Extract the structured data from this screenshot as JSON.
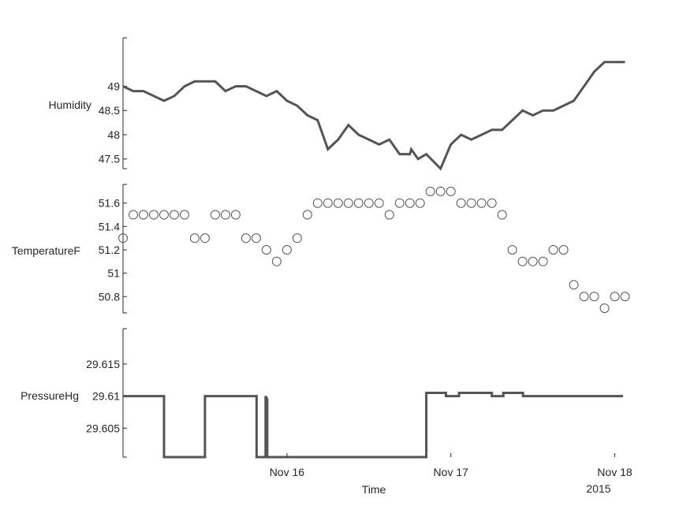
{
  "chart_data": {
    "type": "line",
    "layout": "stacked-plot",
    "x_axis": {
      "label": "Time",
      "ticks": [
        "Nov 16",
        "Nov 17",
        "Nov 18"
      ],
      "tick_days": [
        16,
        17,
        18
      ],
      "range_days": [
        15,
        18.05
      ],
      "secondary_label": "2015"
    },
    "panels": [
      {
        "ylabel": "Humidity",
        "style": "line",
        "color": "#555555",
        "ylim": [
          47.3,
          50
        ],
        "yticks": [
          "47.5",
          "48",
          "48.5",
          "49"
        ],
        "x": [
          15.0,
          15.0625,
          15.125,
          15.1875,
          15.25,
          15.3125,
          15.375,
          15.4375,
          15.5,
          15.5625,
          15.625,
          15.6875,
          15.75,
          15.8125,
          15.875,
          15.9375,
          16.0,
          16.0625,
          16.125,
          16.1875,
          16.25,
          16.3125,
          16.375,
          16.4375,
          16.5,
          16.5625,
          16.625,
          16.6875,
          16.75,
          16.7583,
          16.8,
          16.85,
          16.9375,
          17.0,
          17.0625,
          17.125,
          17.1875,
          17.25,
          17.3125,
          17.375,
          17.4375,
          17.5,
          17.5625,
          17.625,
          17.6875,
          17.75,
          17.8125,
          17.875,
          17.9375,
          18.0,
          18.0625
        ],
        "y": [
          49.0,
          48.9,
          48.9,
          48.8,
          48.7,
          48.8,
          49.0,
          49.1,
          49.1,
          49.1,
          48.9,
          49.0,
          49.0,
          48.9,
          48.8,
          48.9,
          48.7,
          48.6,
          48.4,
          48.3,
          47.7,
          47.9,
          48.2,
          48.0,
          47.9,
          47.8,
          47.9,
          47.6,
          47.6,
          47.7,
          47.5,
          47.6,
          47.3,
          47.8,
          48.0,
          47.9,
          48.0,
          48.1,
          48.1,
          48.3,
          48.5,
          48.4,
          48.5,
          48.5,
          48.6,
          48.7,
          49.0,
          49.3,
          49.5,
          49.5,
          49.5
        ]
      },
      {
        "ylabel": "TemperatureF",
        "style": "markers",
        "marker": "circle",
        "color": "#555555",
        "ylim": [
          50.66,
          51.76
        ],
        "yticks": [
          "50.8",
          "51",
          "51.2",
          "51.4",
          "51.6"
        ],
        "x": [
          15.0,
          15.0625,
          15.125,
          15.1875,
          15.25,
          15.3125,
          15.375,
          15.4375,
          15.5,
          15.5625,
          15.625,
          15.6875,
          15.75,
          15.8125,
          15.875,
          15.9375,
          16.0,
          16.0625,
          16.125,
          16.1875,
          16.25,
          16.3125,
          16.375,
          16.4375,
          16.5,
          16.5625,
          16.625,
          16.6875,
          16.75,
          16.8125,
          16.875,
          16.9375,
          17.0,
          17.0625,
          17.125,
          17.1875,
          17.25,
          17.3125,
          17.375,
          17.4375,
          17.5,
          17.5625,
          17.625,
          17.6875,
          17.75,
          17.8125,
          17.875,
          17.9375,
          18.0,
          18.0625
        ],
        "y": [
          51.3,
          51.5,
          51.5,
          51.5,
          51.5,
          51.5,
          51.5,
          51.3,
          51.3,
          51.5,
          51.5,
          51.5,
          51.3,
          51.3,
          51.2,
          51.1,
          51.2,
          51.3,
          51.5,
          51.6,
          51.6,
          51.6,
          51.6,
          51.6,
          51.6,
          51.6,
          51.5,
          51.6,
          51.6,
          51.6,
          51.7,
          51.7,
          51.7,
          51.6,
          51.6,
          51.6,
          51.6,
          51.5,
          51.2,
          51.1,
          51.1,
          51.1,
          51.2,
          51.2,
          50.9,
          50.8,
          50.8,
          50.7,
          50.8,
          50.8
        ]
      },
      {
        "ylabel": "PressureHg",
        "style": "line",
        "color": "#555555",
        "ylim": [
          29.6005,
          29.6205
        ],
        "yticks": [
          "29.605",
          "29.61",
          "29.615"
        ],
        "x": [
          15.0,
          15.25,
          15.25,
          15.5,
          15.5,
          15.815,
          15.815,
          15.87,
          15.87,
          15.88,
          15.88,
          16.85,
          16.85,
          16.97,
          16.97,
          17.05,
          17.05,
          17.25,
          17.25,
          17.32,
          17.32,
          17.44,
          17.44,
          18.05
        ],
        "y": [
          29.61,
          29.61,
          29.6,
          29.6,
          29.61,
          29.61,
          29.6,
          29.6,
          29.61,
          29.6095,
          29.6,
          29.6,
          29.6105,
          29.6105,
          29.61,
          29.61,
          29.6105,
          29.6105,
          29.61,
          29.61,
          29.6105,
          29.6105,
          29.61,
          29.61
        ]
      }
    ]
  }
}
